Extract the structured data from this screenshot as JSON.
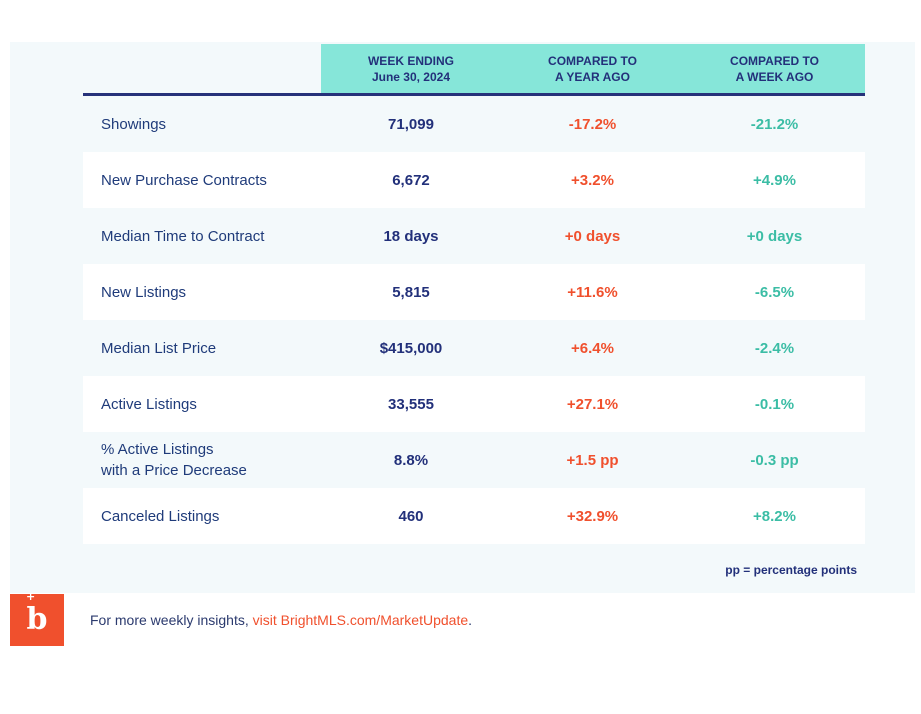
{
  "header": {
    "col1": "WEEK ENDING\nJune 30, 2024",
    "col2": "COMPARED TO\nA YEAR AGO",
    "col3": "COMPARED TO\nA WEEK AGO"
  },
  "rows": [
    {
      "label": "Showings",
      "value": "71,099",
      "year_ago": "-17.2%",
      "week_ago": "-21.2%"
    },
    {
      "label": "New Purchase Contracts",
      "value": "6,672",
      "year_ago": "+3.2%",
      "week_ago": "+4.9%"
    },
    {
      "label": "Median Time to Contract",
      "value": "18 days",
      "year_ago": "+0 days",
      "week_ago": "+0 days"
    },
    {
      "label": "New Listings",
      "value": "5,815",
      "year_ago": "+11.6%",
      "week_ago": "-6.5%"
    },
    {
      "label": "Median List Price",
      "value": "$415,000",
      "year_ago": "+6.4%",
      "week_ago": "-2.4%"
    },
    {
      "label": "Active Listings",
      "value": "33,555",
      "year_ago": "+27.1%",
      "week_ago": "-0.1%"
    },
    {
      "label": "% Active Listings\nwith a Price Decrease",
      "value": "8.8%",
      "year_ago": "+1.5 pp",
      "week_ago": "-0.3 pp"
    },
    {
      "label": "Canceled Listings",
      "value": "460",
      "year_ago": "+32.9%",
      "week_ago": "+8.2%"
    }
  ],
  "note": "pp = percentage points",
  "footer": {
    "text": "For more weekly insights, ",
    "link": "visit BrightMLS.com/MarketUpdate",
    "end": "."
  },
  "logo": {
    "letter": "b",
    "mark": "+"
  },
  "colors": {
    "accent": "#f0502d",
    "header_bg": "#86e6d9",
    "navy": "#22307a",
    "teal": "#3bbda5"
  }
}
